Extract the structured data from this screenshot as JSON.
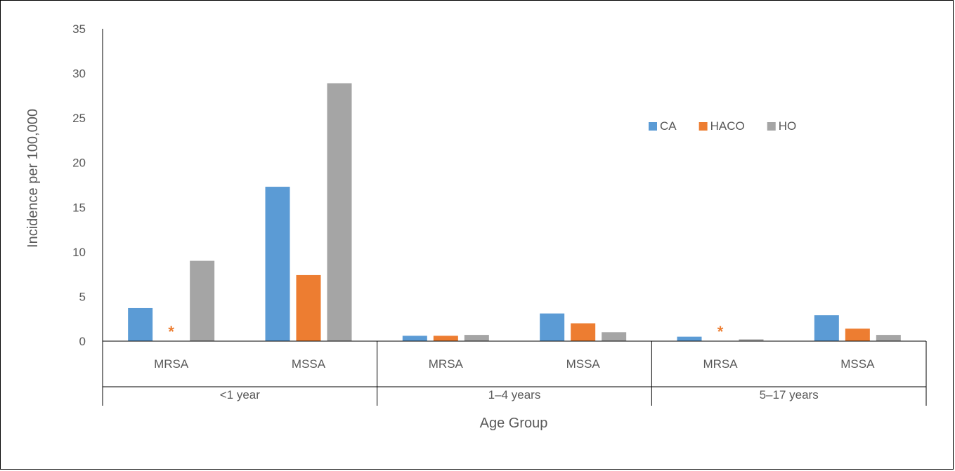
{
  "chart_data": {
    "type": "bar",
    "title": "",
    "xlabel": "Age Group",
    "ylabel": "Incidence per 100,000",
    "ylim": [
      0,
      35
    ],
    "yticks": [
      "0",
      "5",
      "10",
      "15",
      "20",
      "25",
      "30",
      "35"
    ],
    "groups": [
      {
        "label": "<1 year",
        "categories": [
          "MRSA",
          "MSSA"
        ]
      },
      {
        "label": "1–4 years",
        "categories": [
          "MRSA",
          "MSSA"
        ]
      },
      {
        "label": "5–17 years",
        "categories": [
          "MRSA",
          "MSSA"
        ]
      }
    ],
    "series": [
      {
        "name": "CA",
        "color": "#5B9BD5",
        "values": [
          3.7,
          17.3,
          0.6,
          3.1,
          0.5,
          2.9
        ]
      },
      {
        "name": "HACO",
        "color": "#ED7D31",
        "values": [
          null,
          7.4,
          0.6,
          2.0,
          null,
          1.4
        ]
      },
      {
        "name": "HO",
        "color": "#A5A5A5",
        "values": [
          9.0,
          28.9,
          0.7,
          1.0,
          0.2,
          0.7
        ]
      }
    ],
    "annotations": [
      {
        "series": "HACO",
        "category_index": 0,
        "text": "*"
      },
      {
        "series": "HACO",
        "category_index": 4,
        "text": "*"
      }
    ],
    "grid": false,
    "legend": "top-right"
  }
}
